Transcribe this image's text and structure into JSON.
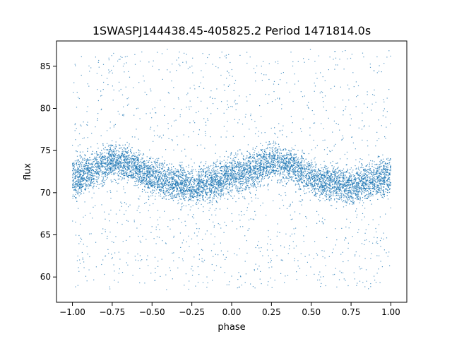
{
  "chart_data": {
    "type": "scatter",
    "title": "1SWASPJ144438.45-405825.2 Period 1471814.0s",
    "xlabel": "phase",
    "ylabel": "flux",
    "xlim": [
      -1.1,
      1.1
    ],
    "ylim": [
      57.0,
      88.0
    ],
    "xticks": [
      -1.0,
      -0.75,
      -0.5,
      -0.25,
      0.0,
      0.25,
      0.5,
      0.75,
      1.0
    ],
    "xtick_labels": [
      "−1.00",
      "−0.75",
      "−0.50",
      "−0.25",
      "0.00",
      "0.25",
      "0.50",
      "0.75",
      "1.00"
    ],
    "yticks": [
      60,
      65,
      70,
      75,
      80,
      85
    ],
    "ytick_labels": [
      "60",
      "65",
      "70",
      "75",
      "80",
      "85"
    ],
    "grid": false,
    "marker_color": "#1f77b4",
    "envelope": {
      "x": [
        -1.0,
        -0.875,
        -0.75,
        -0.625,
        -0.5,
        -0.375,
        -0.25,
        -0.125,
        0.0,
        0.125,
        0.25,
        0.375,
        0.5,
        0.625,
        0.75,
        0.875,
        1.0
      ],
      "y_low": [
        68.5,
        69.5,
        71.0,
        70.5,
        69.0,
        68.5,
        68.0,
        68.5,
        69.0,
        69.5,
        71.0,
        70.5,
        69.0,
        68.5,
        68.0,
        68.5,
        69.0
      ],
      "y_high": [
        75.0,
        75.5,
        76.5,
        76.0,
        74.5,
        74.0,
        73.5,
        74.0,
        75.0,
        75.5,
        76.5,
        76.0,
        74.5,
        74.0,
        73.5,
        74.5,
        75.0
      ]
    },
    "outlier_range": [
      58.5,
      87.0
    ]
  }
}
